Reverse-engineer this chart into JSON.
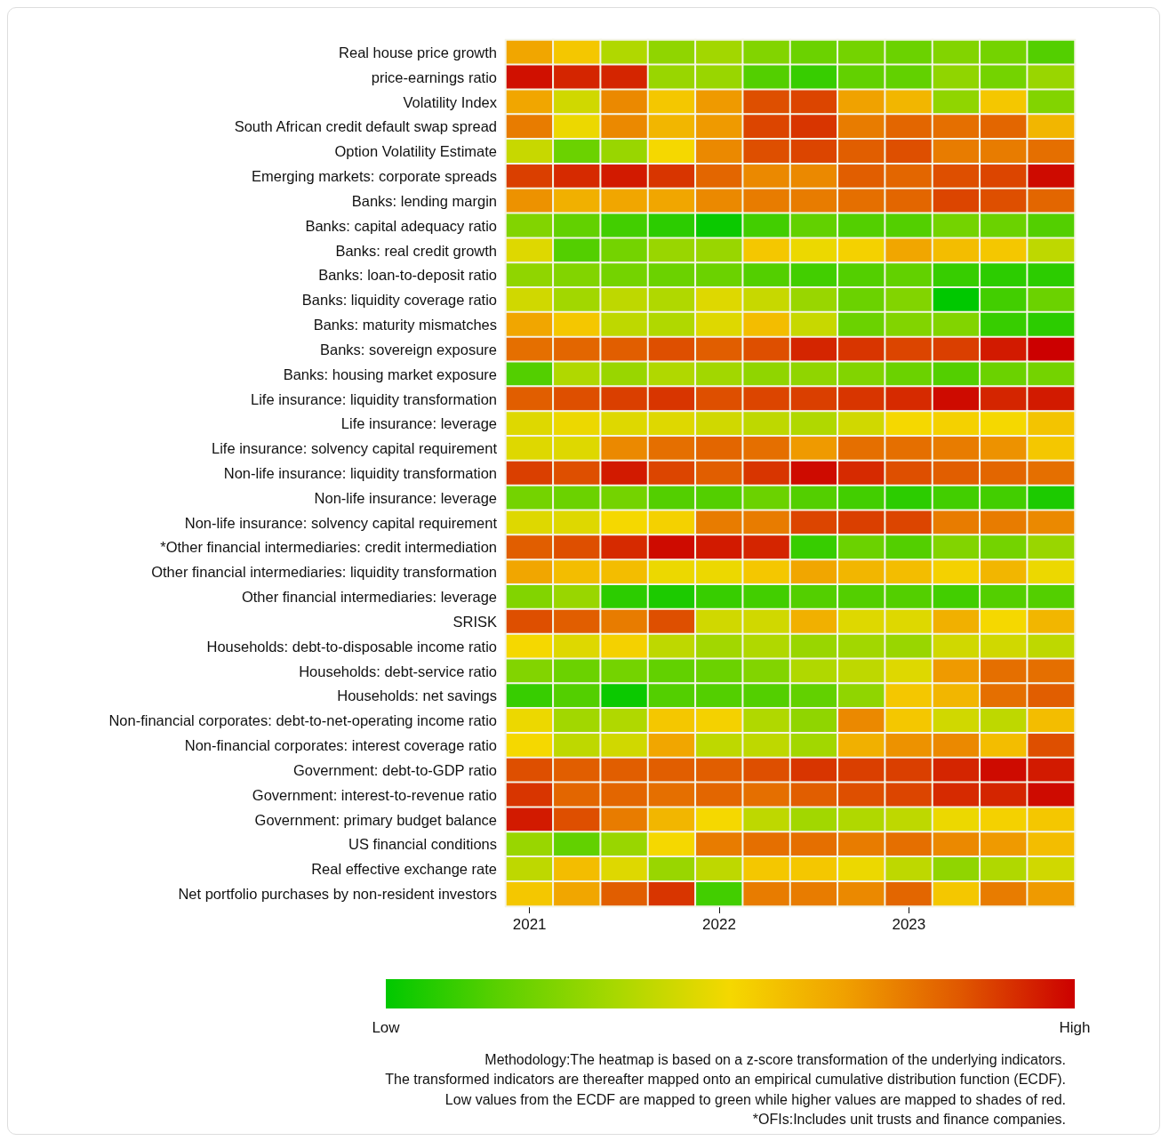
{
  "chart_data": {
    "type": "heatmap",
    "categories": [
      "2021",
      null,
      null,
      null,
      "2022",
      null,
      null,
      null,
      "2023",
      null,
      null,
      null
    ],
    "y_categories": [
      "Real house price growth",
      "price-earnings ratio",
      "Volatility Index",
      "South African credit default swap spread",
      "Option Volatility Estimate",
      "Emerging markets: corporate spreads",
      "Banks: lending margin",
      "Banks: capital adequacy ratio",
      "Banks: real credit growth",
      "Banks: loan-to-deposit ratio",
      "Banks: liquidity coverage ratio",
      "Banks: maturity mismatches",
      "Banks: sovereign exposure",
      "Banks: housing market exposure",
      "Life insurance: liquidity transformation",
      "Life insurance: leverage",
      "Life insurance: solvency capital requirement",
      "Non-life insurance: liquidity transformation",
      "Non-life insurance: leverage",
      "Non-life insurance: solvency capital requirement",
      "*Other financial intermediaries: credit intermediation",
      "Other financial intermediaries: liquidity transformation",
      "Other financial intermediaries: leverage",
      "SRISK",
      "Households: debt-to-disposable income ratio",
      "Households: debt-service ratio",
      "Households: net savings",
      "Non-financial corporates: debt-to-net-operating income ratio",
      "Non-financial corporates: interest coverage ratio",
      "Government: debt-to-GDP ratio",
      "Government: interest-to-revenue ratio",
      "Government: primary budget balance",
      "US financial conditions",
      "Real effective exchange rate",
      "Net portfolio purchases by non-resident investors"
    ],
    "cells": [
      [
        0.65,
        0.55,
        0.35,
        0.28,
        0.32,
        0.25,
        0.2,
        0.22,
        0.2,
        0.25,
        0.22,
        0.15
      ],
      [
        0.97,
        0.93,
        0.93,
        0.3,
        0.3,
        0.15,
        0.1,
        0.18,
        0.18,
        0.28,
        0.22,
        0.3
      ],
      [
        0.65,
        0.42,
        0.72,
        0.55,
        0.68,
        0.85,
        0.87,
        0.66,
        0.6,
        0.28,
        0.55,
        0.25
      ],
      [
        0.75,
        0.48,
        0.72,
        0.6,
        0.68,
        0.87,
        0.9,
        0.75,
        0.8,
        0.78,
        0.8,
        0.6
      ],
      [
        0.4,
        0.2,
        0.3,
        0.5,
        0.72,
        0.85,
        0.87,
        0.82,
        0.85,
        0.75,
        0.75,
        0.78
      ],
      [
        0.88,
        0.92,
        0.95,
        0.9,
        0.8,
        0.72,
        0.72,
        0.82,
        0.8,
        0.85,
        0.87,
        0.98
      ],
      [
        0.7,
        0.62,
        0.65,
        0.65,
        0.72,
        0.75,
        0.75,
        0.78,
        0.8,
        0.87,
        0.85,
        0.8
      ],
      [
        0.25,
        0.18,
        0.12,
        0.08,
        0.02,
        0.12,
        0.18,
        0.15,
        0.15,
        0.22,
        0.2,
        0.15
      ],
      [
        0.45,
        0.15,
        0.22,
        0.3,
        0.3,
        0.55,
        0.48,
        0.52,
        0.65,
        0.58,
        0.55,
        0.38
      ],
      [
        0.28,
        0.25,
        0.22,
        0.2,
        0.2,
        0.15,
        0.12,
        0.15,
        0.18,
        0.1,
        0.08,
        0.08
      ],
      [
        0.42,
        0.32,
        0.38,
        0.35,
        0.45,
        0.4,
        0.3,
        0.2,
        0.25,
        0.0,
        0.12,
        0.2
      ],
      [
        0.65,
        0.55,
        0.38,
        0.35,
        0.45,
        0.58,
        0.4,
        0.2,
        0.25,
        0.25,
        0.1,
        0.08
      ],
      [
        0.78,
        0.8,
        0.82,
        0.85,
        0.82,
        0.85,
        0.93,
        0.9,
        0.87,
        0.88,
        0.95,
        1.0
      ],
      [
        0.15,
        0.35,
        0.3,
        0.35,
        0.32,
        0.28,
        0.28,
        0.25,
        0.2,
        0.15,
        0.2,
        0.22
      ],
      [
        0.82,
        0.85,
        0.88,
        0.9,
        0.85,
        0.87,
        0.88,
        0.9,
        0.92,
        0.98,
        0.93,
        0.95
      ],
      [
        0.45,
        0.48,
        0.45,
        0.45,
        0.42,
        0.38,
        0.35,
        0.42,
        0.5,
        0.52,
        0.5,
        0.56
      ],
      [
        0.45,
        0.45,
        0.72,
        0.78,
        0.8,
        0.78,
        0.68,
        0.78,
        0.78,
        0.75,
        0.7,
        0.55
      ],
      [
        0.88,
        0.85,
        0.95,
        0.87,
        0.82,
        0.9,
        0.98,
        0.92,
        0.85,
        0.82,
        0.8,
        0.78
      ],
      [
        0.22,
        0.2,
        0.22,
        0.15,
        0.15,
        0.2,
        0.15,
        0.12,
        0.08,
        0.12,
        0.12,
        0.05
      ],
      [
        0.45,
        0.45,
        0.5,
        0.52,
        0.75,
        0.75,
        0.87,
        0.88,
        0.87,
        0.75,
        0.75,
        0.72
      ],
      [
        0.82,
        0.85,
        0.92,
        0.98,
        0.95,
        0.93,
        0.1,
        0.2,
        0.15,
        0.25,
        0.22,
        0.3
      ],
      [
        0.65,
        0.58,
        0.58,
        0.48,
        0.48,
        0.55,
        0.65,
        0.6,
        0.58,
        0.52,
        0.6,
        0.48
      ],
      [
        0.25,
        0.3,
        0.08,
        0.05,
        0.1,
        0.12,
        0.15,
        0.15,
        0.15,
        0.12,
        0.15,
        0.15
      ],
      [
        0.85,
        0.82,
        0.75,
        0.85,
        0.42,
        0.42,
        0.62,
        0.45,
        0.45,
        0.62,
        0.5,
        0.6
      ],
      [
        0.5,
        0.45,
        0.52,
        0.38,
        0.32,
        0.35,
        0.3,
        0.32,
        0.3,
        0.42,
        0.42,
        0.38
      ],
      [
        0.25,
        0.2,
        0.22,
        0.18,
        0.2,
        0.25,
        0.35,
        0.38,
        0.45,
        0.68,
        0.78,
        0.78
      ],
      [
        0.1,
        0.15,
        0.02,
        0.15,
        0.15,
        0.15,
        0.18,
        0.28,
        0.55,
        0.6,
        0.78,
        0.82
      ],
      [
        0.48,
        0.32,
        0.35,
        0.55,
        0.52,
        0.35,
        0.28,
        0.72,
        0.55,
        0.42,
        0.38,
        0.58
      ],
      [
        0.5,
        0.38,
        0.42,
        0.65,
        0.38,
        0.38,
        0.32,
        0.62,
        0.7,
        0.72,
        0.58,
        0.85
      ],
      [
        0.85,
        0.82,
        0.82,
        0.82,
        0.82,
        0.85,
        0.9,
        0.88,
        0.88,
        0.93,
        0.98,
        0.95
      ],
      [
        0.9,
        0.8,
        0.8,
        0.78,
        0.8,
        0.78,
        0.82,
        0.85,
        0.87,
        0.92,
        0.93,
        0.98
      ],
      [
        0.95,
        0.85,
        0.75,
        0.6,
        0.5,
        0.38,
        0.32,
        0.35,
        0.38,
        0.48,
        0.52,
        0.55
      ],
      [
        0.3,
        0.18,
        0.3,
        0.5,
        0.75,
        0.78,
        0.78,
        0.75,
        0.78,
        0.72,
        0.68,
        0.58
      ],
      [
        0.38,
        0.58,
        0.45,
        0.3,
        0.38,
        0.55,
        0.55,
        0.48,
        0.38,
        0.28,
        0.35,
        0.42
      ],
      [
        0.55,
        0.65,
        0.82,
        0.9,
        0.12,
        0.75,
        0.75,
        0.72,
        0.8,
        0.55,
        0.75,
        0.68
      ]
    ],
    "clim": [
      0,
      1
    ],
    "cticks": [
      {
        "value": 0,
        "label": "Low"
      },
      {
        "value": 1,
        "label": "High"
      }
    ],
    "annotations": [
      "Methodology:The heatmap is based on a z-score transformation of the underlying indicators.",
      "The transformed indicators are thereafter mapped onto an empirical cumulative distribution function (ECDF).",
      "Low values from the ECDF are mapped to green while higher values are mapped to shades of red.",
      "*OFIs:Includes unit trusts and finance companies."
    ]
  }
}
